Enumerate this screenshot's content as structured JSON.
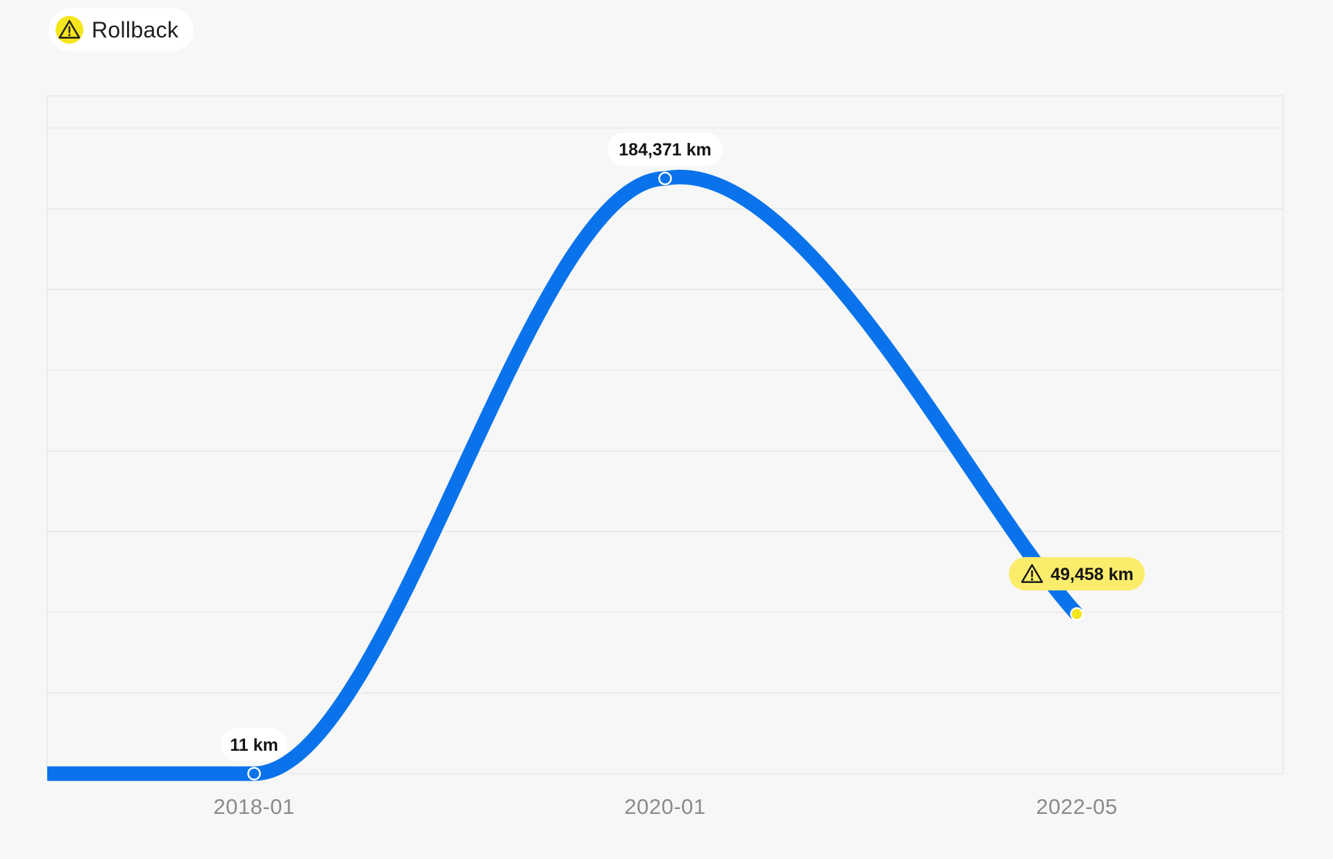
{
  "badge": {
    "label": "Rollback",
    "icon": "warning-icon",
    "icon_color": "#f5e61c"
  },
  "chart_data": {
    "type": "line",
    "title": "",
    "xlabel": "",
    "ylabel": "",
    "x": [
      "2018-01",
      "2020-01",
      "2022-05"
    ],
    "series": [
      {
        "values": [
          11,
          184371,
          49458
        ],
        "labels": [
          "11 km",
          "184,371 km",
          "49,458 km"
        ],
        "warning": [
          false,
          false,
          true
        ],
        "color": "#0a73eb"
      }
    ],
    "ylim": [
      0,
      210000
    ],
    "grid": true,
    "legend": "none",
    "colors": {
      "line": "#0a73eb",
      "warning": "#f5e61c",
      "grid": "#e6e9e7"
    }
  }
}
